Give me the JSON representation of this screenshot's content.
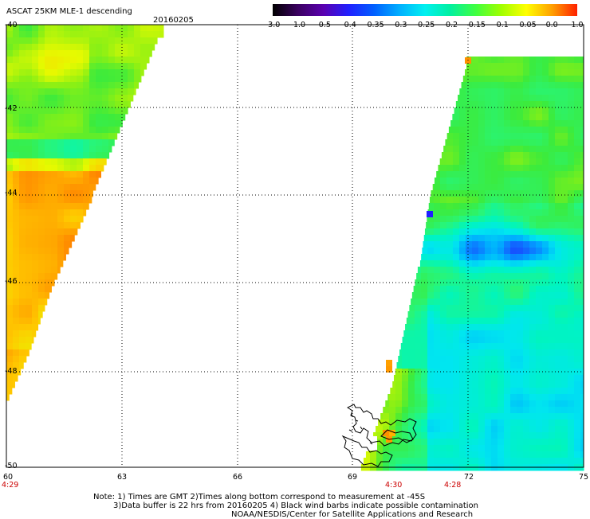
{
  "header": {
    "title": "ASCAT 25KM MLE-1 descending",
    "date": "20160205"
  },
  "colorbar": {
    "labels": [
      "-3.0",
      "-1.0",
      "-0.5",
      "-0.4",
      "-0.35",
      "-0.3",
      "-0.25",
      "-0.2",
      "-0.15",
      "-0.1",
      "-0.05",
      "0.0",
      "1.0"
    ],
    "colors": [
      "#000000",
      "#3a0060",
      "#5a00b0",
      "#2020ff",
      "#0060ff",
      "#00b0ff",
      "#00f0f0",
      "#00f0a0",
      "#40ff40",
      "#a0ff00",
      "#ffff00",
      "#ffa000",
      "#ff2000"
    ]
  },
  "map": {
    "lat_labels": [
      "-40",
      "-42",
      "-44",
      "-46",
      "-48",
      "-50"
    ],
    "lon_labels": [
      "60",
      "63",
      "66",
      "69",
      "72",
      "75"
    ],
    "time_labels": [
      "4:29",
      "4:30",
      "4:28"
    ]
  },
  "notes": {
    "line1": "Note: 1) Times are GMT 2)Times along bottom correspond to measurement at -45S",
    "line2": "3)Data buffer is 22 hrs from 20160205 4) Black wind barbs indicate possible contamination",
    "line3": "NOAA/NESDIS/Center for Satellite Applications and Research"
  }
}
